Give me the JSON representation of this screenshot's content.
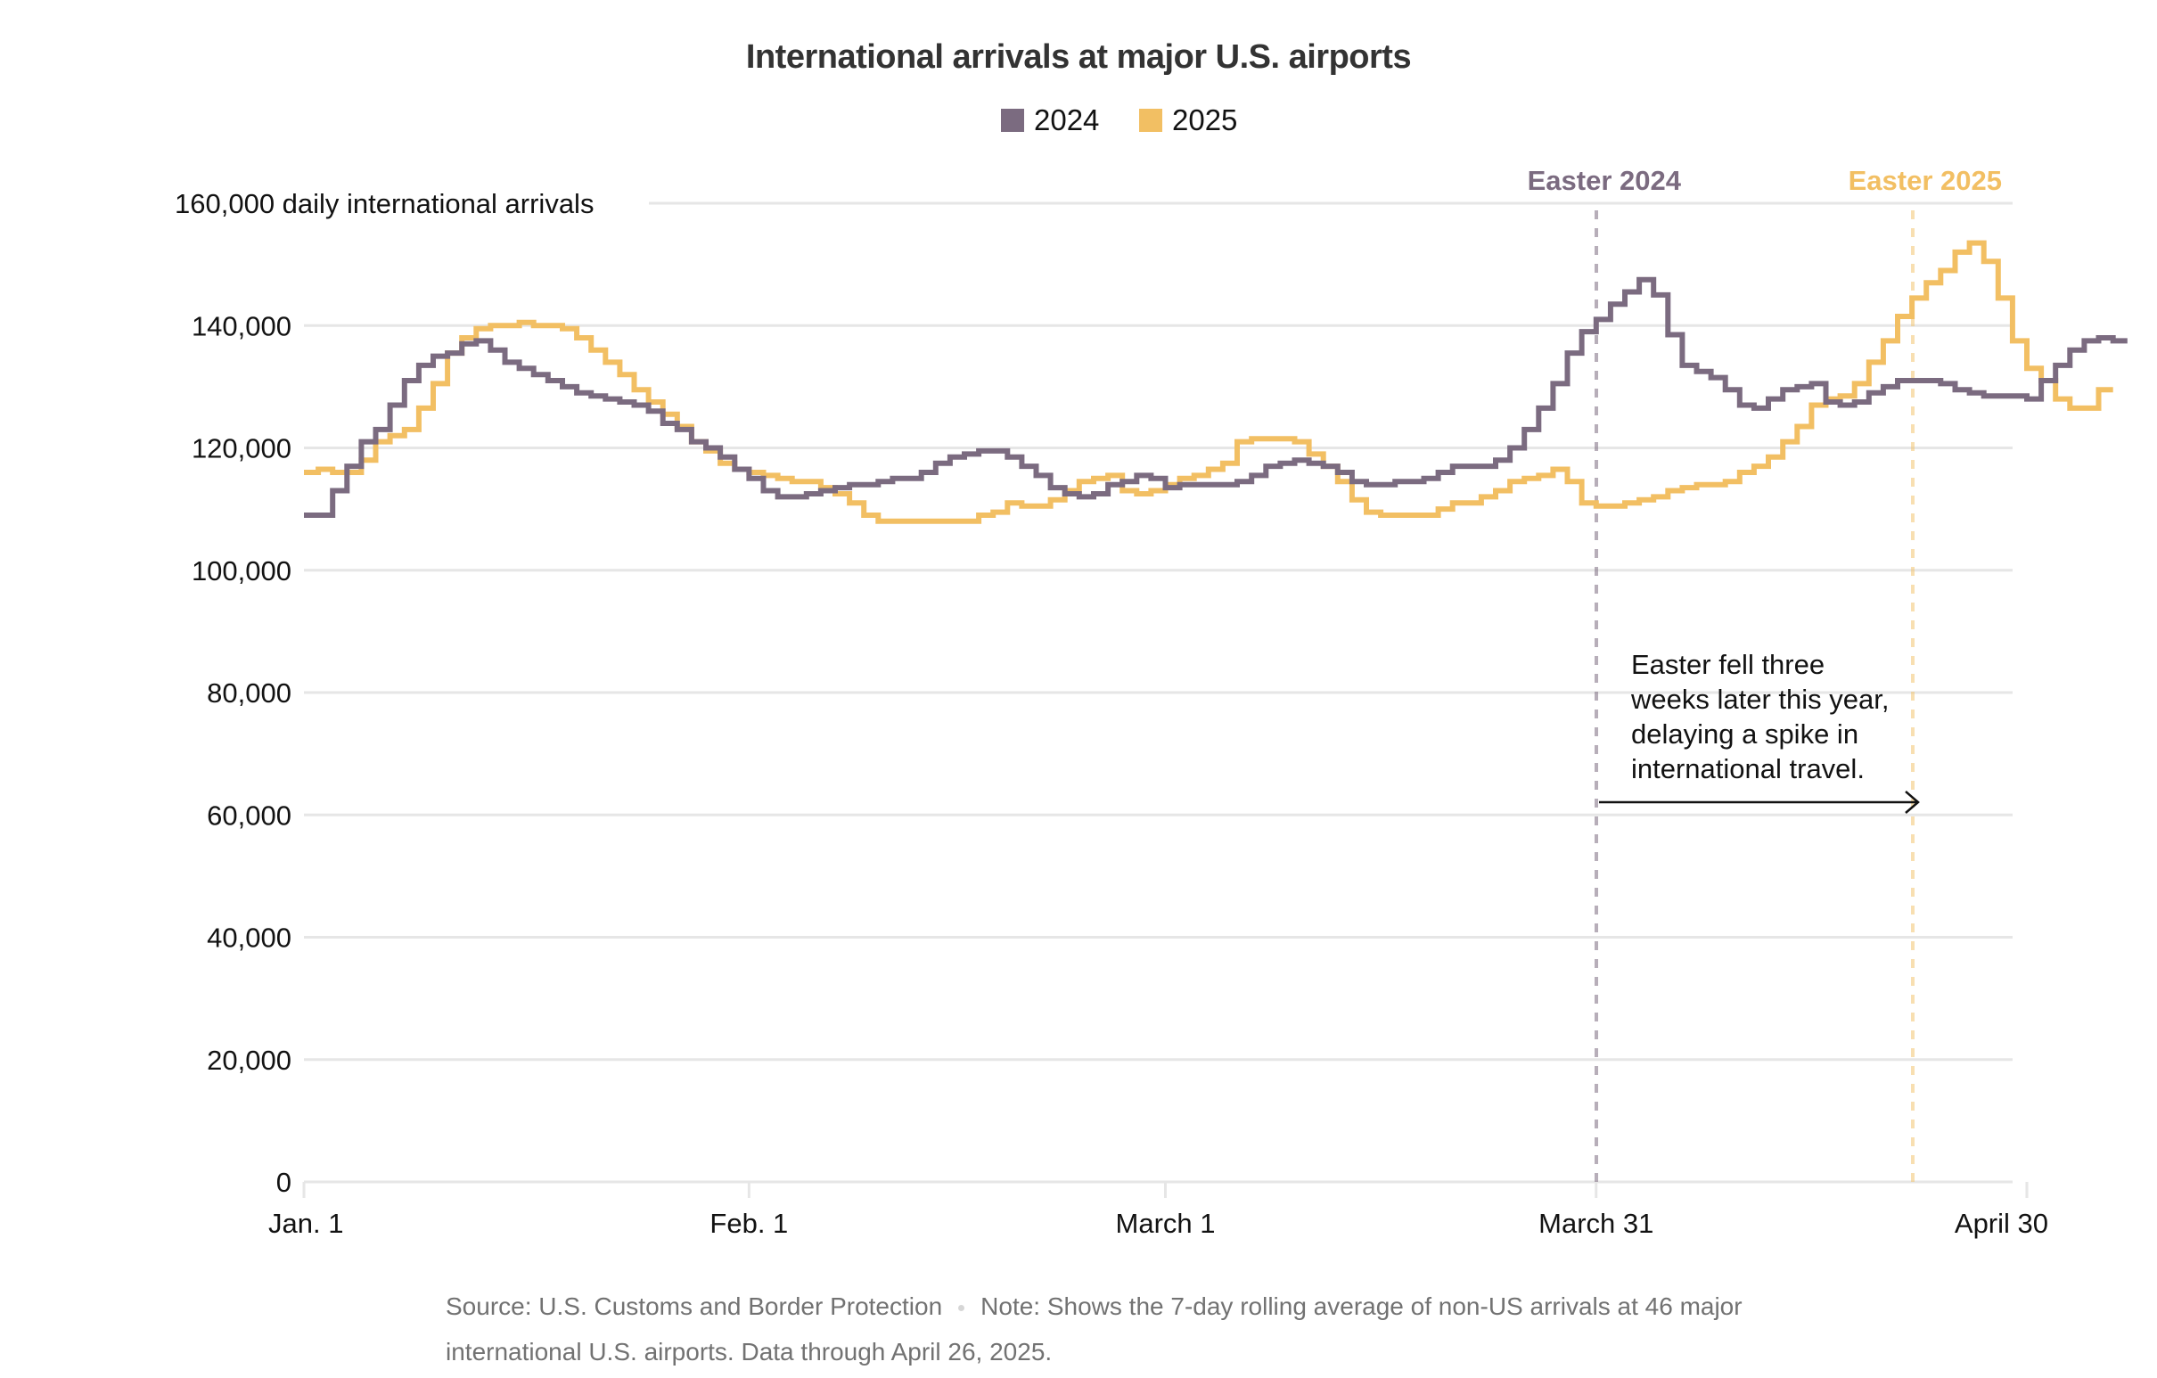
{
  "chart_data": {
    "type": "line",
    "title": "International arrivals at major U.S. airports",
    "ylabel": "daily international arrivals",
    "xlabel": "",
    "ylim": [
      0,
      160000
    ],
    "yticks": [
      0,
      20000,
      40000,
      60000,
      80000,
      100000,
      120000,
      140000,
      160000
    ],
    "ytick_labels": [
      "0",
      "20,000",
      "40,000",
      "60,000",
      "80,000",
      "100,000",
      "120,000",
      "140,000",
      "160,000"
    ],
    "top_tick_suffix": "daily international arrivals",
    "xlim_days": [
      0,
      120
    ],
    "xticks": [
      {
        "day": 0,
        "label": "Jan. 1"
      },
      {
        "day": 31,
        "label": "Feb. 1"
      },
      {
        "day": 60,
        "label": "March 1"
      },
      {
        "day": 90,
        "label": "March 31"
      },
      {
        "day": 120,
        "label": "April 30"
      }
    ],
    "grid": true,
    "legend_position": "top-center",
    "series": [
      {
        "name": "2024",
        "color": "#7b6b80",
        "start_day": 0,
        "values": [
          109000,
          109000,
          113000,
          117000,
          121000,
          123000,
          127000,
          131000,
          133500,
          135000,
          135500,
          137000,
          137500,
          136000,
          134000,
          133000,
          132000,
          131000,
          130000,
          129000,
          128500,
          128000,
          127500,
          127000,
          126000,
          124000,
          123000,
          121000,
          120000,
          118500,
          116500,
          115000,
          113000,
          112000,
          112000,
          112500,
          113000,
          113500,
          114000,
          114000,
          114500,
          115000,
          115000,
          116000,
          117500,
          118500,
          119000,
          119500,
          119500,
          118500,
          117000,
          115500,
          113500,
          112500,
          112000,
          112500,
          114000,
          114500,
          115500,
          115000,
          113500,
          114000,
          114000,
          114000,
          114000,
          114500,
          115500,
          117000,
          117500,
          118000,
          117500,
          117000,
          116000,
          114500,
          114000,
          114000,
          114500,
          114500,
          115000,
          116000,
          117000,
          117000,
          117000,
          118000,
          120000,
          123000,
          126500,
          130500,
          135500,
          139000,
          141000,
          143500,
          145500,
          147500,
          145000,
          138500,
          133500,
          132500,
          131500,
          129500,
          127000,
          126500,
          128000,
          129500,
          130000,
          130500,
          127500,
          127000,
          127500,
          129000,
          130000,
          131000,
          131000,
          131000,
          130500,
          129500,
          129000,
          128500,
          128500,
          128500,
          128000,
          131000,
          133500,
          136000,
          137500,
          138000,
          137500
        ]
      },
      {
        "name": "2025",
        "color": "#f2bf63",
        "start_day": 0,
        "values": [
          116000,
          116500,
          116000,
          116000,
          118000,
          121000,
          122000,
          123000,
          126500,
          130500,
          135500,
          138000,
          139500,
          140000,
          140000,
          140500,
          140000,
          140000,
          139500,
          138000,
          136000,
          134000,
          132000,
          129500,
          127500,
          125500,
          123500,
          121000,
          119500,
          117500,
          116500,
          116000,
          115500,
          115000,
          114500,
          114500,
          113500,
          112500,
          111000,
          109000,
          108000,
          108000,
          108000,
          108000,
          108000,
          108000,
          108000,
          109000,
          109500,
          111000,
          110500,
          110500,
          111500,
          113000,
          114500,
          115000,
          115500,
          113000,
          112500,
          113000,
          114000,
          115000,
          115500,
          116500,
          117500,
          121000,
          121500,
          121500,
          121500,
          121000,
          119000,
          117000,
          114500,
          111500,
          109500,
          109000,
          109000,
          109000,
          109000,
          110000,
          111000,
          111000,
          112000,
          113000,
          114500,
          115000,
          115500,
          116500,
          114500,
          111000,
          110500,
          110500,
          111000,
          111500,
          112000,
          113000,
          113500,
          114000,
          114000,
          114500,
          116000,
          117000,
          118500,
          121000,
          123500,
          127000,
          128000,
          128500,
          130500,
          134000,
          137500,
          141500,
          144500,
          147000,
          149000,
          152000,
          153500,
          150500,
          144500,
          137500,
          133000,
          131000,
          128000,
          126500,
          126500,
          129500
        ]
      }
    ],
    "annotations": [
      {
        "label": "Easter 2024",
        "day": 90,
        "color": "#7b6b80",
        "date": "March 31"
      },
      {
        "label": "Easter 2025",
        "day": 112,
        "color": "#f2bf63",
        "date": "April 20"
      }
    ],
    "note_lines": [
      "Easter fell three",
      "weeks later this year,",
      "delaying a spike in",
      "international travel."
    ]
  },
  "legend": [
    {
      "label": "2024",
      "color": "#7b6b80"
    },
    {
      "label": "2025",
      "color": "#f2bf63"
    }
  ],
  "footer": {
    "source": "Source: U.S. Customs and Border Protection",
    "note": "Note: Shows the 7-day rolling average of non-US arrivals at 46 major international U.S. airports. Data through April 26, 2025."
  }
}
